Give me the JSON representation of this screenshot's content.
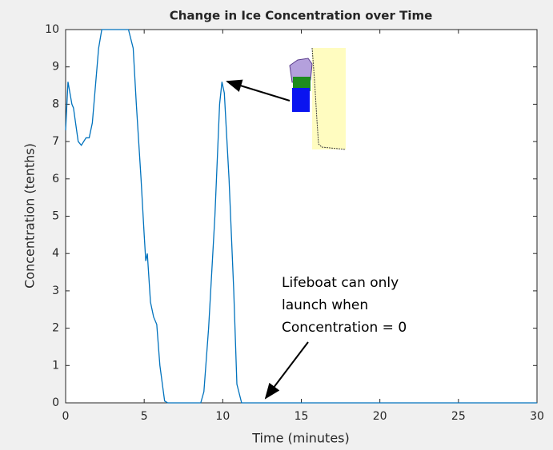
{
  "chart_data": {
    "type": "line",
    "title": "Change in Ice Concentration over Time",
    "x_label": "Time (minutes)",
    "y_label": "Concentration (tenths)",
    "x": [
      0,
      0.15,
      0.4,
      0.5,
      0.8,
      1.0,
      1.3,
      1.5,
      1.7,
      1.9,
      2.1,
      2.3,
      4.0,
      4.3,
      4.5,
      4.8,
      5.0,
      5.1,
      5.2,
      5.4,
      5.6,
      5.8,
      6.0,
      6.3,
      6.5,
      8.6,
      8.8,
      9.1,
      9.5,
      9.8,
      9.95,
      10.1,
      10.4,
      10.7,
      10.9,
      11.2,
      30
    ],
    "values": [
      7.3,
      8.6,
      8.0,
      7.9,
      7.0,
      6.9,
      7.1,
      7.1,
      7.5,
      8.5,
      9.5,
      10,
      10,
      9.5,
      8,
      6,
      4.5,
      3.8,
      4.0,
      2.7,
      2.3,
      2.1,
      1,
      0.05,
      0,
      0,
      0.3,
      2,
      5,
      8,
      8.6,
      8.3,
      6,
      3,
      0.5,
      0,
      0
    ],
    "color": "#0072bd",
    "xlim": [
      0,
      30
    ],
    "xticks": [
      0,
      5,
      10,
      15,
      20,
      25,
      30
    ],
    "ylim": [
      0,
      10
    ],
    "yticks": [
      0,
      1,
      2,
      3,
      4,
      5,
      6,
      7,
      8,
      9,
      10
    ],
    "annotation": [
      "Lifeboat can only",
      "launch when",
      "Concentration = 0"
    ]
  }
}
